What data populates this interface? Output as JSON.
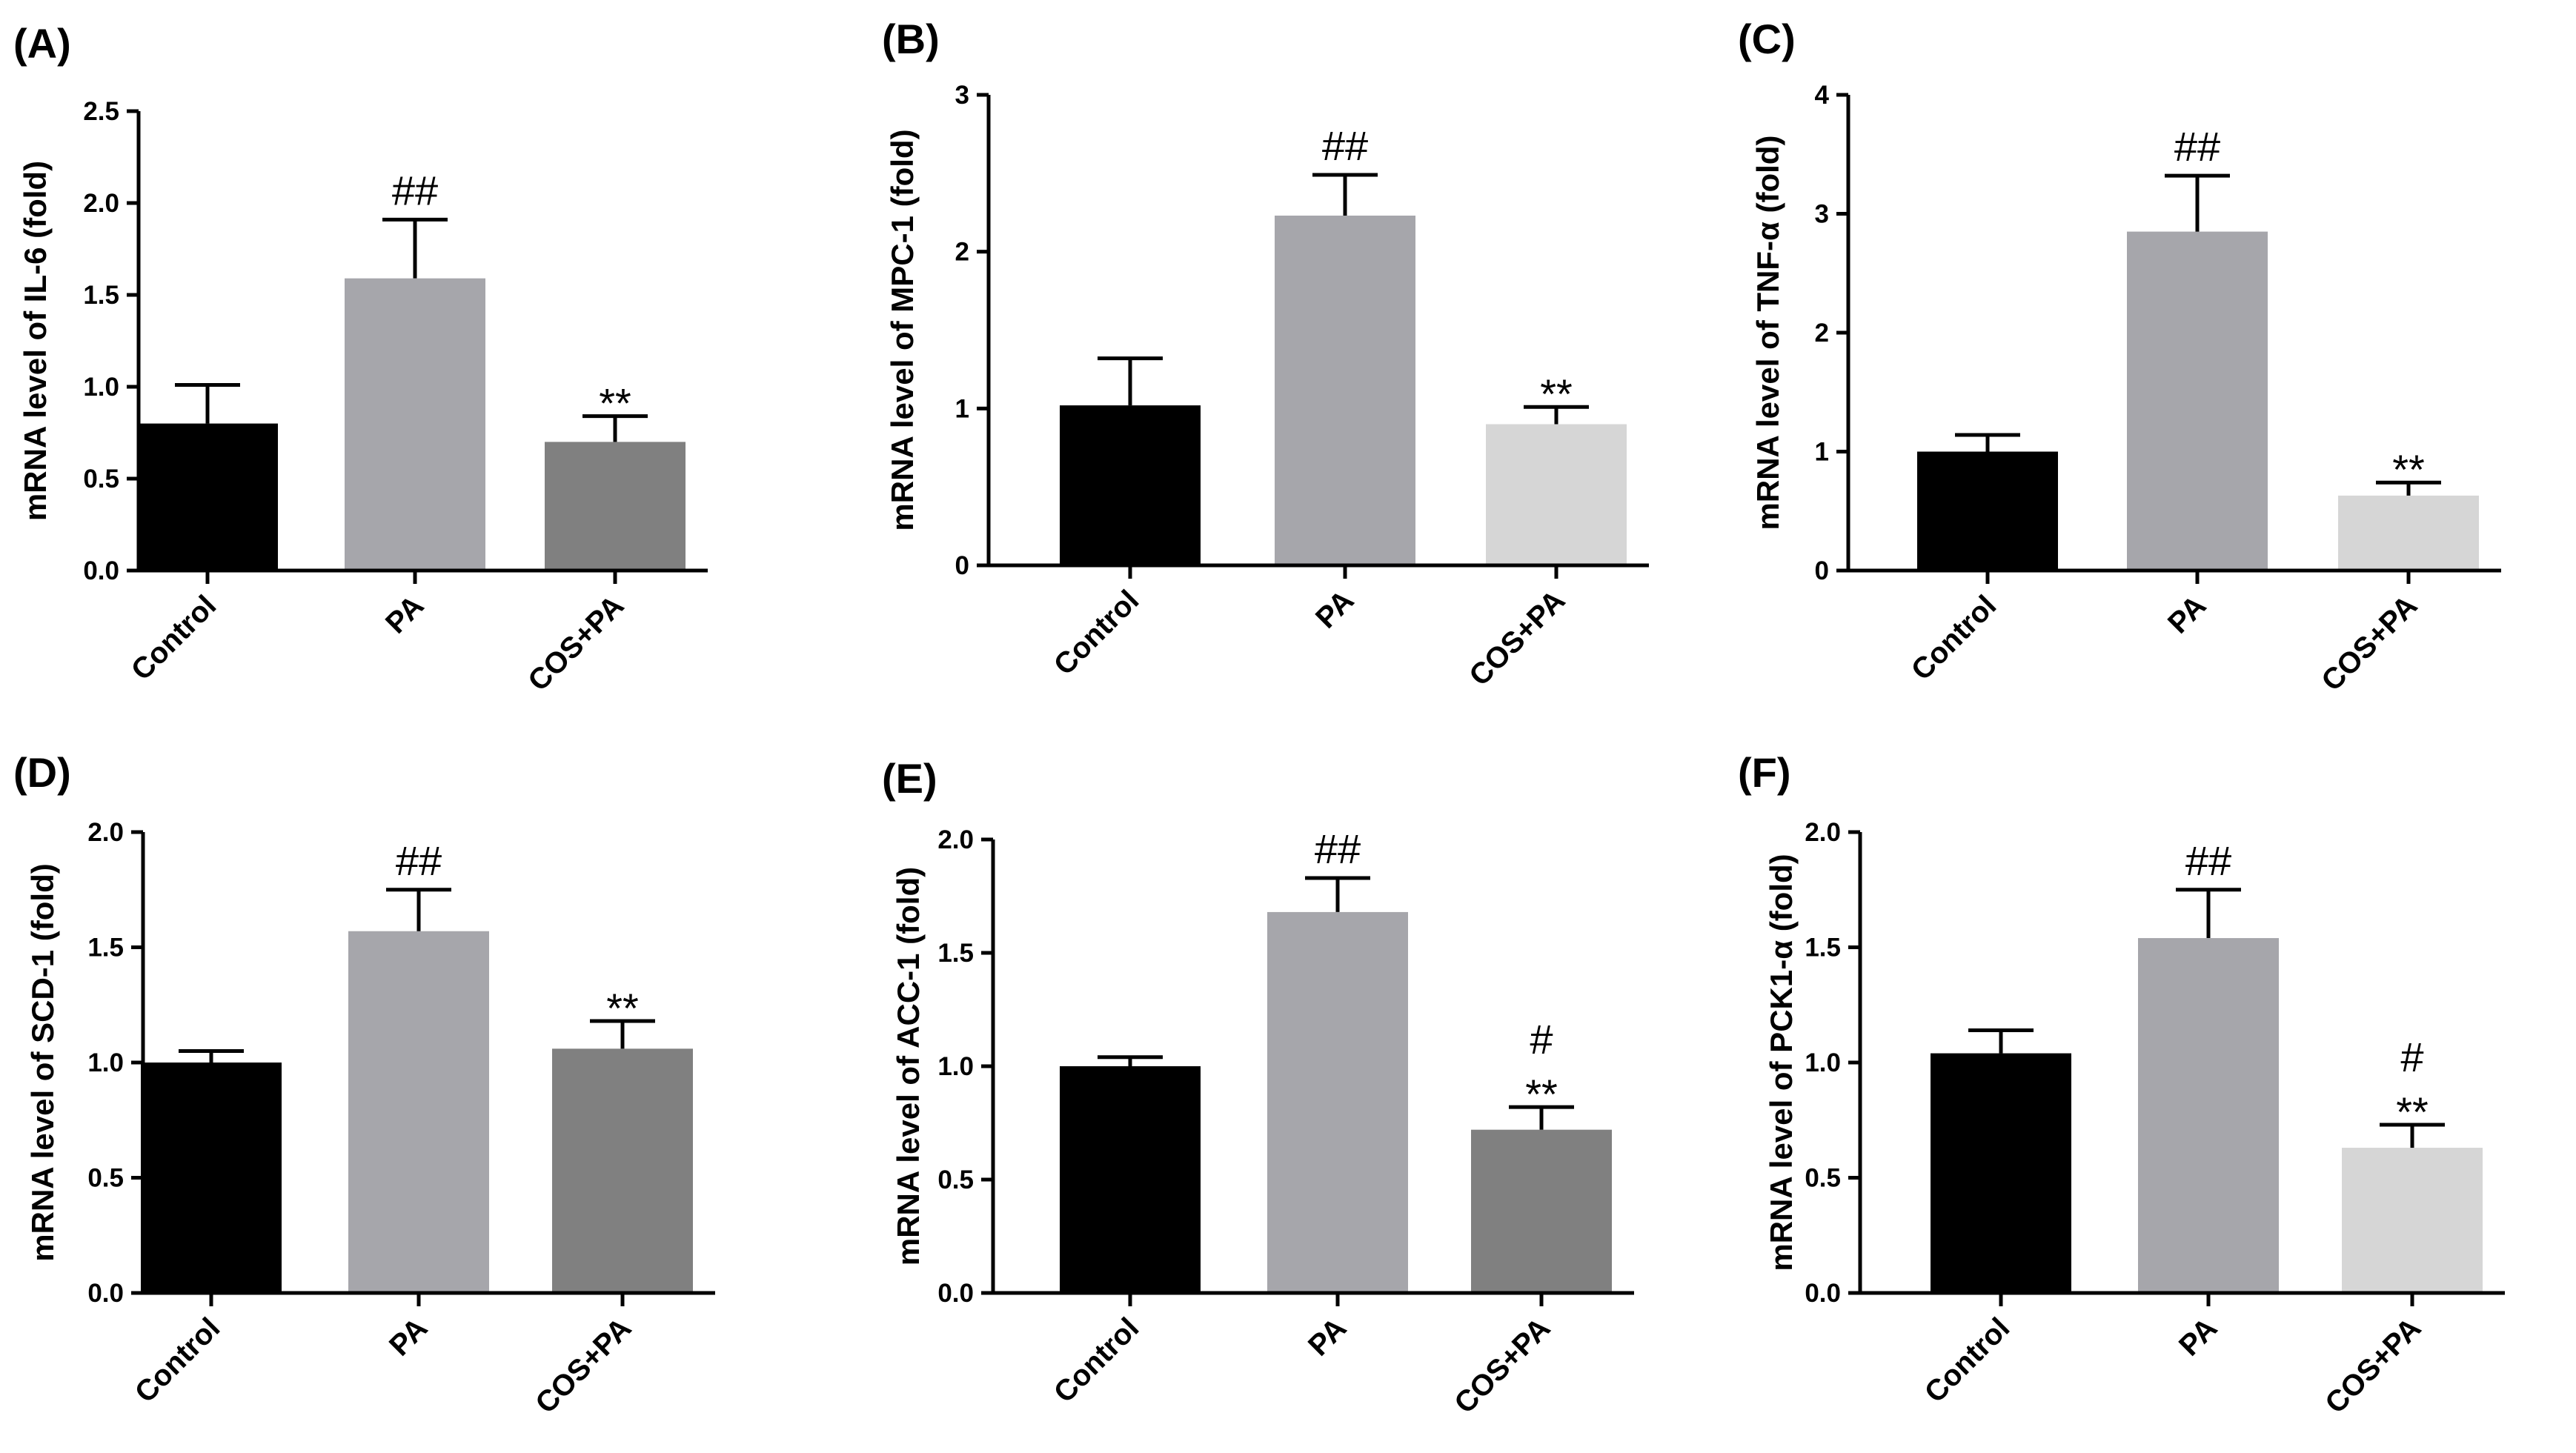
{
  "chart_data": [
    {
      "panel": "(A)",
      "type": "bar",
      "categories": [
        "Control",
        "PA",
        "COS+PA"
      ],
      "values": [
        0.8,
        1.59,
        0.7
      ],
      "errors": [
        0.21,
        0.32,
        0.14
      ],
      "colors": [
        "#000000",
        "#a6a6ab",
        "#808080"
      ],
      "annotations": [
        [],
        [
          "##"
        ],
        [
          "**"
        ]
      ],
      "ylabel": "mRNA level of IL-6 (fold)",
      "ylim": [
        0,
        2.5
      ],
      "yticks": [
        "0.0",
        "0.5",
        "1.0",
        "1.5",
        "2.0",
        "2.5"
      ]
    },
    {
      "panel": "(B)",
      "type": "bar",
      "categories": [
        "Control",
        "PA",
        "COS+PA"
      ],
      "values": [
        1.02,
        2.23,
        0.9
      ],
      "errors": [
        0.3,
        0.26,
        0.11
      ],
      "colors": [
        "#000000",
        "#a6a6ab",
        "#d6d6d6"
      ],
      "annotations": [
        [],
        [
          "##"
        ],
        [
          "**"
        ]
      ],
      "ylabel": "mRNA level of MPC-1 (fold)",
      "ylim": [
        0,
        3
      ],
      "yticks": [
        "0",
        "1",
        "2",
        "3"
      ]
    },
    {
      "panel": "(C)",
      "type": "bar",
      "categories": [
        "Control",
        "PA",
        "COS+PA"
      ],
      "values": [
        1.0,
        2.85,
        0.63
      ],
      "errors": [
        0.14,
        0.47,
        0.11
      ],
      "colors": [
        "#000000",
        "#a6a6ab",
        "#d6d6d6"
      ],
      "annotations": [
        [],
        [
          "##"
        ],
        [
          "**"
        ]
      ],
      "ylabel": "mRNA level of TNF-α (fold)",
      "ylim": [
        0,
        4
      ],
      "yticks": [
        "0",
        "1",
        "2",
        "3",
        "4"
      ]
    },
    {
      "panel": "(D)",
      "type": "bar",
      "categories": [
        "Control",
        "PA",
        "COS+PA"
      ],
      "values": [
        1.0,
        1.57,
        1.06
      ],
      "errors": [
        0.05,
        0.18,
        0.12
      ],
      "colors": [
        "#000000",
        "#a6a6ab",
        "#808080"
      ],
      "annotations": [
        [],
        [
          "##"
        ],
        [
          "**"
        ]
      ],
      "ylabel": "mRNA level of SCD-1 (fold)",
      "ylim": [
        0,
        2.0
      ],
      "yticks": [
        "0.0",
        "0.5",
        "1.0",
        "1.5",
        "2.0"
      ]
    },
    {
      "panel": "(E)",
      "type": "bar",
      "categories": [
        "Control",
        "PA",
        "COS+PA"
      ],
      "values": [
        1.0,
        1.68,
        0.72
      ],
      "errors": [
        0.04,
        0.15,
        0.1
      ],
      "colors": [
        "#000000",
        "#a6a6ab",
        "#808080"
      ],
      "annotations": [
        [],
        [
          "##"
        ],
        [
          "#",
          "**"
        ]
      ],
      "ylabel": "mRNA level of ACC-1 (fold)",
      "ylim": [
        0,
        2.0
      ],
      "yticks": [
        "0.0",
        "0.5",
        "1.0",
        "1.5",
        "2.0"
      ]
    },
    {
      "panel": "(F)",
      "type": "bar",
      "categories": [
        "Control",
        "PA",
        "COS+PA"
      ],
      "values": [
        1.04,
        1.54,
        0.63
      ],
      "errors": [
        0.1,
        0.21,
        0.1
      ],
      "colors": [
        "#000000",
        "#a6a6ab",
        "#d6d6d6"
      ],
      "annotations": [
        [],
        [
          "##"
        ],
        [
          "#",
          "**"
        ]
      ],
      "ylabel": "mRNA level of PCK1-α (fold)",
      "ylim": [
        0,
        2.0
      ],
      "yticks": [
        "0.0",
        "0.5",
        "1.0",
        "1.5",
        "2.0"
      ]
    }
  ]
}
